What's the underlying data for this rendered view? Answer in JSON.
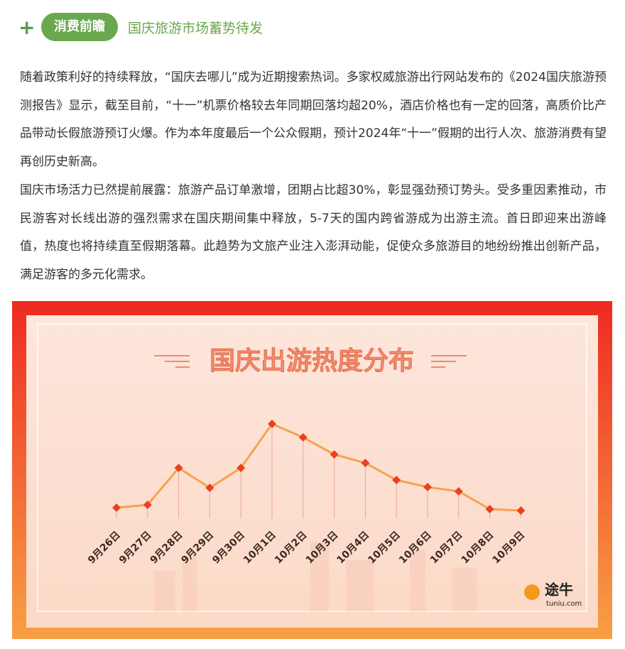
{
  "header": {
    "icon": "+",
    "tag": "消费前瞻",
    "title": "国庆旅游市场蓄势待发"
  },
  "paragraphs": [
    "随着政策利好的持续释放，“国庆去哪儿”成为近期搜索热词。多家权威旅游出行网站发布的《2024国庆旅游预测报告》显示，截至目前，“十一”机票价格较去年同期回落均超20%，酒店价格也有一定的回落，高质价比产品带动长假旅游预订火爆。作为本年度最后一个公众假期，预计2024年“十一”假期的出行人次、旅游消费有望再创历史新高。",
    "国庆市场活力已然提前展露：旅游产品订单激增，团期占比超30%，彰显强劲预订势头。受多重因素推动，市民游客对长线出游的强烈需求在国庆期间集中释放，5-7天的国内跨省游成为出游主流。首日即迎来出游峰值，热度也将持续直至假期落幕。此趋势为文旅产业注入澎湃动能，促使众多旅游目的地纷纷推出创新产品，满足游客的多元化需求。"
  ],
  "chart_data": {
    "type": "line",
    "title": "国庆出游热度分布",
    "categories": [
      "9月26日",
      "9月27日",
      "9月28日",
      "9月29日",
      "9月30日",
      "10月1日",
      "10月2日",
      "10月3日",
      "10月4日",
      "10月5日",
      "10月6日",
      "10月7日",
      "10月8日",
      "10月9日"
    ],
    "values": [
      25,
      29,
      81,
      53,
      81,
      143,
      124,
      100,
      88,
      64,
      54,
      48,
      23,
      21
    ],
    "ylim": [
      0,
      150
    ],
    "color": "#e8431f",
    "line_color": "#f7a24f"
  },
  "logo": {
    "name": "途牛",
    "site": "tuniu.com"
  }
}
